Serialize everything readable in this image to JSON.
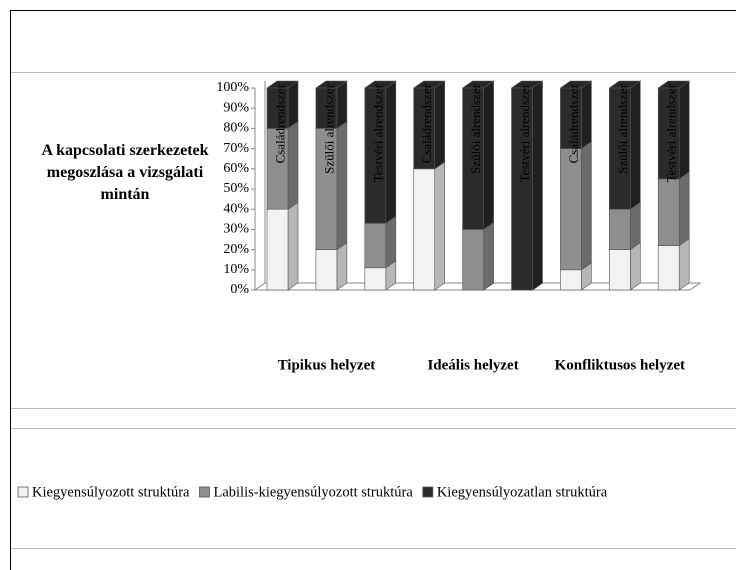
{
  "chart_data": {
    "type": "bar",
    "stacked": true,
    "title": "A kapcsolati szerkezetek megoszlása a vizsgálati mintán",
    "categories": [
      "Családrendszer",
      "Szülői alrendszer",
      "Testvéri alrendszer",
      "Családrendszer",
      "Szülői alrendszer",
      "Testvéri alrendszer",
      "Családrendszer",
      "Szülői alrendszer",
      "Testvéri alrendszer"
    ],
    "groups": [
      "Tipikus helyzet",
      "Ideális helyzet",
      "Konfliktusos helyzet"
    ],
    "series": [
      {
        "name": "Kiegyensúlyozott struktúra",
        "color": "#f2f2f2",
        "values": [
          40,
          20,
          11,
          60,
          0,
          0,
          10,
          20,
          22
        ]
      },
      {
        "name": "Labilis-kiegyensúlyozott struktúra",
        "color": "#8e8e8e",
        "values": [
          40,
          60,
          22,
          0,
          30,
          0,
          60,
          20,
          33
        ]
      },
      {
        "name": "Kiegyensúlyozatlan struktúra",
        "color": "#2b2b2b",
        "values": [
          20,
          20,
          67,
          40,
          70,
          100,
          30,
          60,
          45
        ]
      }
    ],
    "ylim": [
      0,
      100
    ],
    "yticks": [
      {
        "value": 0,
        "label": "0%"
      },
      {
        "value": 10,
        "label": "10%"
      },
      {
        "value": 20,
        "label": "20%"
      },
      {
        "value": 30,
        "label": "30%"
      },
      {
        "value": 40,
        "label": "40%"
      },
      {
        "value": 50,
        "label": "50%"
      },
      {
        "value": 60,
        "label": "60%"
      },
      {
        "value": 70,
        "label": "70%"
      },
      {
        "value": 80,
        "label": "80%"
      },
      {
        "value": 90,
        "label": "90%"
      },
      {
        "value": 100,
        "label": "100%"
      }
    ],
    "legend": "bottom"
  }
}
